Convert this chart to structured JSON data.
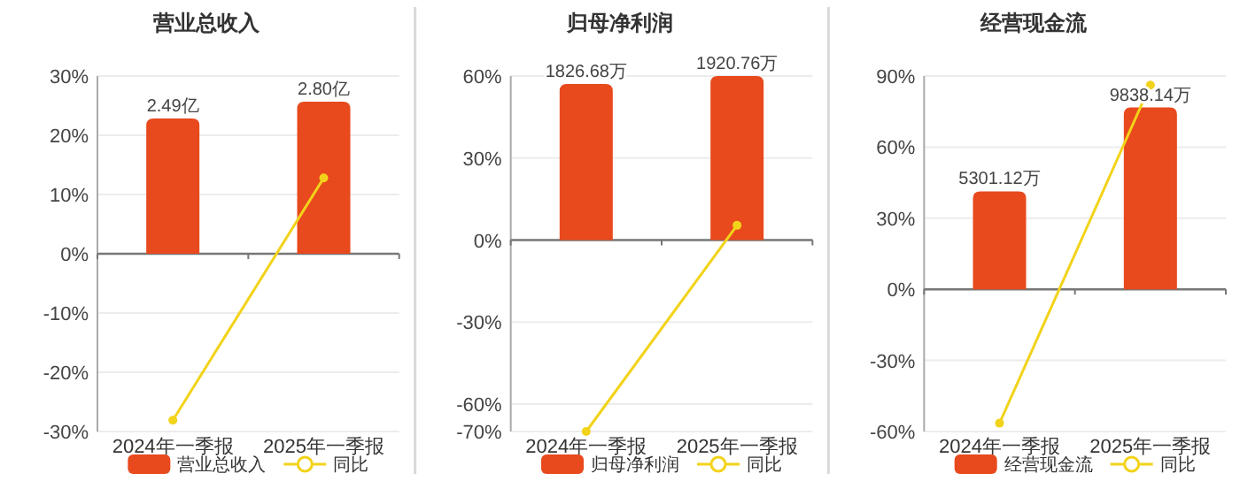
{
  "chart_data": [
    {
      "type": "bar",
      "title": "营业总收入",
      "categories": [
        "2024年一季报",
        "2025年一季报"
      ],
      "series": [
        {
          "name": "营业总收入",
          "color": "#e8491d",
          "axis": "y2",
          "values": [
            2.49,
            2.8
          ],
          "value_labels": [
            "2.49亿",
            "2.80亿"
          ]
        },
        {
          "name": "同比",
          "type": "line",
          "color": "#f2d31a",
          "values": [
            -28.1,
            12.8
          ]
        }
      ],
      "ylim": [
        -30,
        30
      ],
      "yticks": [
        {
          "value": 30,
          "label": "30%"
        },
        {
          "value": 20,
          "label": "20%"
        },
        {
          "value": 10,
          "label": "10%"
        },
        {
          "value": 0,
          "label": "0%"
        },
        {
          "value": -10,
          "label": "-10%"
        },
        {
          "value": -20,
          "label": "-20%"
        },
        {
          "value": -30,
          "label": "-30%"
        }
      ],
      "y2lim": [
        -3.27,
        3.27
      ],
      "grid": "y",
      "legend": "bottom",
      "marker": "circle"
    },
    {
      "type": "bar",
      "title": "归母净利润",
      "categories": [
        "2024年一季报",
        "2025年一季报"
      ],
      "series": [
        {
          "name": "归母净利润",
          "color": "#e8491d",
          "axis": "y2",
          "values": [
            1826.68,
            1920.76
          ],
          "value_labels": [
            "1826.68万",
            "1920.76万"
          ]
        },
        {
          "name": "同比",
          "type": "line",
          "color": "#f2d31a",
          "values": [
            -70,
            5.4
          ]
        }
      ],
      "ylim": [
        -70,
        60
      ],
      "yticks": [
        {
          "value": 60,
          "label": "60%"
        },
        {
          "value": 30,
          "label": "30%"
        },
        {
          "value": 0,
          "label": "0%"
        },
        {
          "value": -30,
          "label": "-30%"
        },
        {
          "value": -60,
          "label": "-60%"
        },
        {
          "value": -70,
          "label": "-70%"
        }
      ],
      "y2lim": [
        -2241,
        1921
      ],
      "grid": "y",
      "legend": "bottom",
      "marker": "circle"
    },
    {
      "type": "bar",
      "title": "经营现金流",
      "categories": [
        "2024年一季报",
        "2025年一季报"
      ],
      "series": [
        {
          "name": "经营现金流",
          "color": "#e8491d",
          "axis": "y2",
          "values": [
            5301.12,
            9838.14
          ],
          "value_labels": [
            "5301.12万",
            "9838.14万"
          ]
        },
        {
          "name": "同比",
          "type": "line",
          "color": "#f2d31a",
          "values": [
            -56.5,
            86.2
          ]
        }
      ],
      "ylim": [
        -60,
        90
      ],
      "yticks": [
        {
          "value": 90,
          "label": "90%"
        },
        {
          "value": 60,
          "label": "60%"
        },
        {
          "value": 30,
          "label": "30%"
        },
        {
          "value": 0,
          "label": "0%"
        },
        {
          "value": -30,
          "label": "-30%"
        },
        {
          "value": -60,
          "label": "-60%"
        }
      ],
      "y2lim": [
        -7692,
        11538
      ],
      "grid": "y",
      "legend": "bottom",
      "marker": "circle"
    }
  ]
}
